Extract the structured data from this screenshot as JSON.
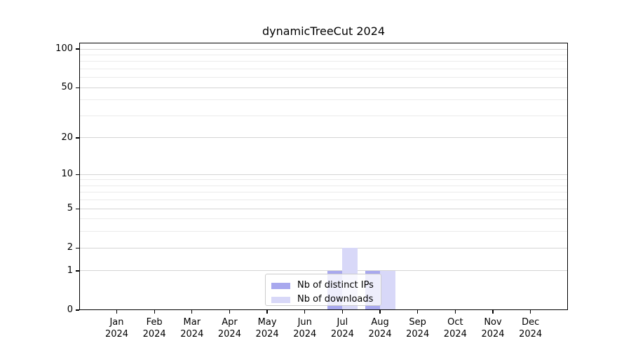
{
  "chart_data": {
    "type": "bar",
    "title": "dynamicTreeCut 2024",
    "year": "2024",
    "categories": [
      "Jan",
      "Feb",
      "Mar",
      "Apr",
      "May",
      "Jun",
      "Jul",
      "Aug",
      "Sep",
      "Oct",
      "Nov",
      "Dec"
    ],
    "series": [
      {
        "name": "Nb of distinct IPs",
        "color": "#a8a8ee",
        "values": [
          0,
          0,
          0,
          0,
          0,
          0,
          1,
          1,
          0,
          0,
          0,
          0
        ]
      },
      {
        "name": "Nb of downloads",
        "color": "#d8d8f8",
        "values": [
          0,
          0,
          0,
          0,
          0,
          0,
          2,
          1,
          0,
          0,
          0,
          0
        ]
      }
    ],
    "xlabel": "",
    "ylabel": "",
    "y_scale": "log1p",
    "y_major_ticks": [
      0,
      1,
      2,
      5,
      10,
      20,
      50,
      100
    ],
    "y_minor_ticks": [
      3,
      4,
      6,
      7,
      8,
      9,
      30,
      40,
      60,
      70,
      80,
      90
    ],
    "ylim": [
      0,
      112
    ],
    "grid": true,
    "legend_position": "lower center"
  },
  "colors": {
    "background": "#ffffff",
    "grid_major": "#d4d4d4",
    "grid_minor": "#ebebeb",
    "axis": "#000000",
    "text": "#000000",
    "legend_border": "#cccccc"
  }
}
